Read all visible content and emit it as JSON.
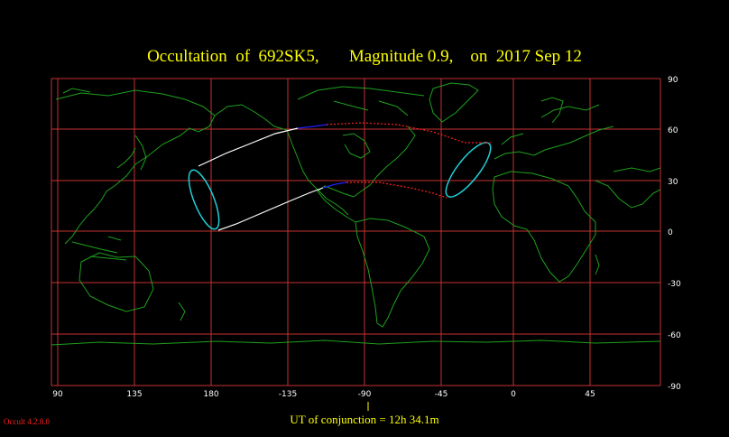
{
  "title": "Occultation  of  692SK5,       Magnitude 0.9,    on  2017 Sep 12",
  "conjunction_text": "UT of conjunction = 12h 34.1m",
  "version": "Occult 4.2.8.0",
  "lon_labels": [
    "90",
    "135",
    "180",
    "-135",
    "-90",
    "-45",
    "0",
    "45"
  ],
  "lat_labels": [
    "90",
    "60",
    "30",
    "0",
    "-30",
    "-60",
    "-90"
  ],
  "colors": {
    "background": "#000000",
    "grid": "#c83232",
    "coast": "#1ea01e",
    "path_day": "#ffffff",
    "path_night": "#2020ff",
    "path_daylight_dotted": "#ff2020",
    "rise_set_curve": "#20d0d8",
    "text": "#ffff00"
  }
}
